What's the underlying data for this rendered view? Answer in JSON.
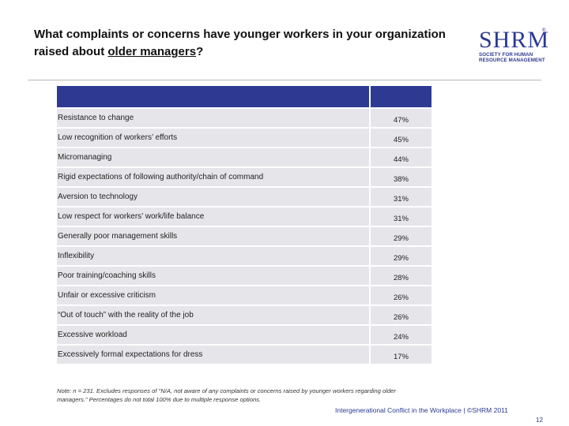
{
  "title": {
    "line1": "What complaints or concerns have younger workers in your organization",
    "line2_prefix": "raised about ",
    "line2_underlined": "older managers",
    "line2_suffix": "?"
  },
  "logo": {
    "mark": "SHRM",
    "reg": "®",
    "sub_line1": "SOCIETY FOR HUMAN",
    "sub_line2": "RESOURCE MANAGEMENT"
  },
  "rows": [
    {
      "label": "Resistance to change",
      "value": "47%"
    },
    {
      "label": "Low recognition of workers’ efforts",
      "value": "45%"
    },
    {
      "label": "Micromanaging",
      "value": "44%"
    },
    {
      "label": "Rigid expectations of following authority/chain of command",
      "value": "38%"
    },
    {
      "label": "Aversion to technology",
      "value": "31%"
    },
    {
      "label": "Low respect for workers’ work/life balance",
      "value": "31%"
    },
    {
      "label": "Generally poor management skills",
      "value": "29%"
    },
    {
      "label": "Inflexibility",
      "value": "29%"
    },
    {
      "label": "Poor training/coaching skills",
      "value": "28%"
    },
    {
      "label": "Unfair or excessive criticism",
      "value": "26%"
    },
    {
      "label": "“Out of touch” with the reality of the job",
      "value": "26%"
    },
    {
      "label": "Excessive workload",
      "value": "24%"
    },
    {
      "label": "Excessively formal expectations for dress",
      "value": "17%"
    }
  ],
  "note": {
    "line1": "Note: n = 231. Excludes responses of \"N/A, not aware of any complaints or concerns raised by younger workers regarding older",
    "line2": "managers.\" Percentages do not total 100% due to multiple response options."
  },
  "footer": "Intergenerational Conflict in the Workplace | ©SHRM 2011",
  "page_number": "12",
  "colors": {
    "header": "#2e3a92",
    "row_bg": "#e6e6ea",
    "brand": "#2b3990"
  }
}
